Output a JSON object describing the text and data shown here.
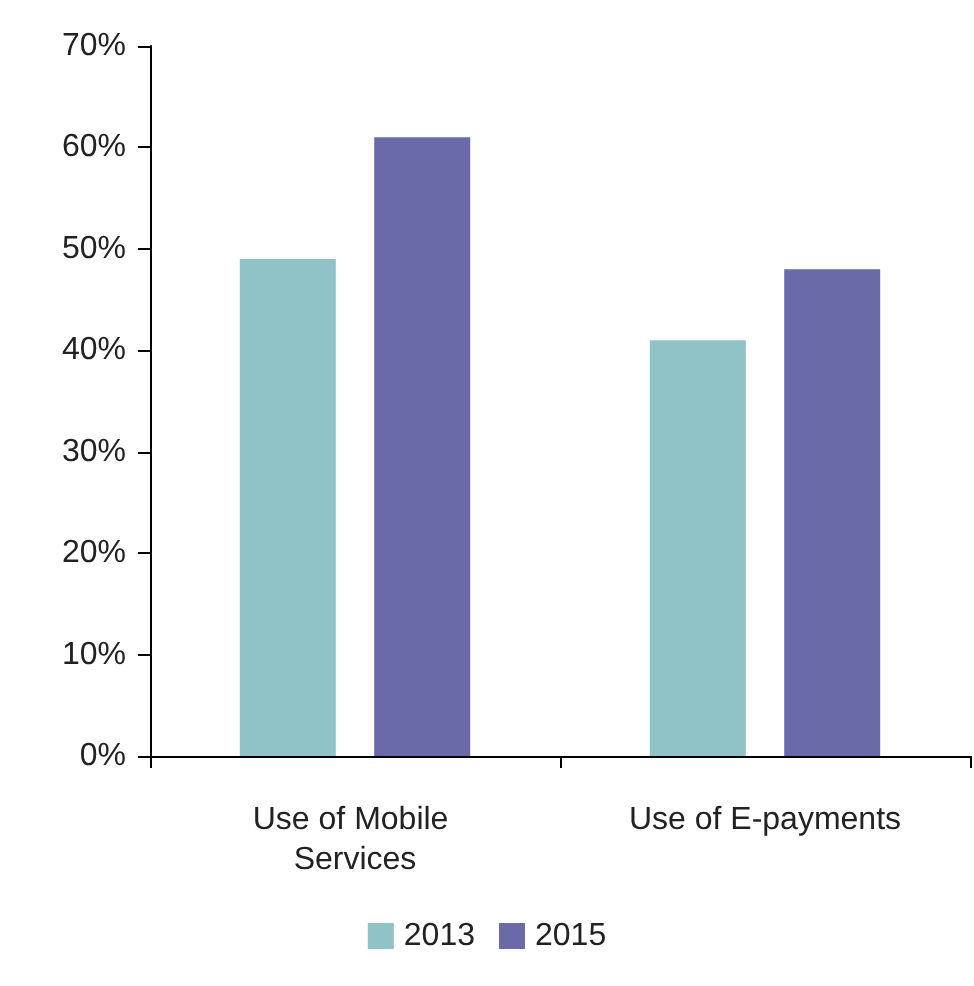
{
  "chart_data": {
    "type": "bar",
    "categories": [
      "Use of Mobile Services",
      "Use of E-payments"
    ],
    "series": [
      {
        "name": "2013",
        "color": "#8fc3c8",
        "values": [
          49,
          41
        ]
      },
      {
        "name": "2015",
        "color": "#6a6aa8",
        "values": [
          61,
          48
        ]
      }
    ],
    "ylim": [
      0,
      70
    ],
    "yticks": [
      {
        "value": 0,
        "label": "0%"
      },
      {
        "value": 10,
        "label": "10%"
      },
      {
        "value": 20,
        "label": "20%"
      },
      {
        "value": 30,
        "label": "30%"
      },
      {
        "value": 40,
        "label": "40%"
      },
      {
        "value": 50,
        "label": "50%"
      },
      {
        "value": 60,
        "label": "60%"
      },
      {
        "value": 70,
        "label": "70%"
      }
    ],
    "grid": false,
    "legend": "bottom"
  }
}
